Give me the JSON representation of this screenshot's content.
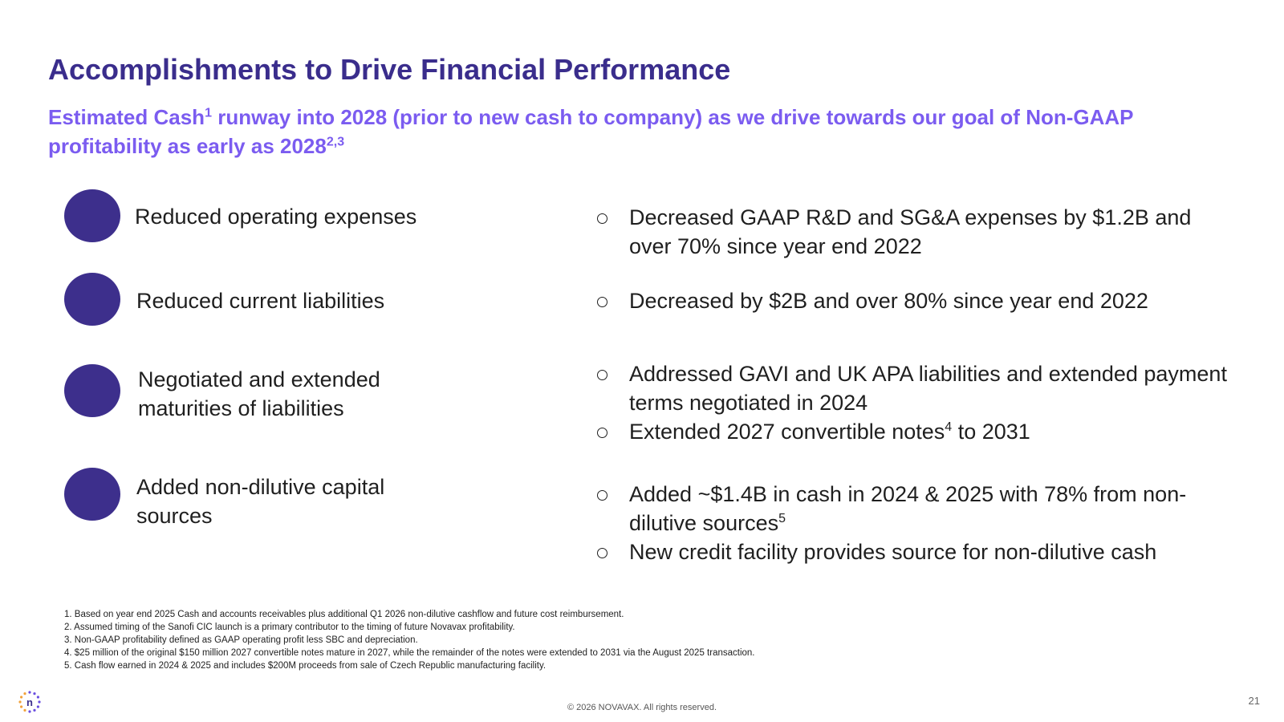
{
  "slide": {
    "title": "Accomplishments to Drive Financial Performance",
    "subtitle": {
      "part1": "Estimated Cash",
      "sup1": "1",
      "part2": " runway into 2028 (prior to new cash to company) as we drive towards our goal of Non-GAAP profitability as early as 2028",
      "sup2": "2,3"
    },
    "rows": [
      {
        "label": "Reduced operating expenses",
        "bullets": [
          {
            "text": "Decreased GAAP R&D and SG&A expenses by $1.2B and over 70% since year end 2022"
          }
        ]
      },
      {
        "label": "Reduced current liabilities",
        "bullets": [
          {
            "text": "Decreased by $2B and over 80% since year end 2022"
          }
        ]
      },
      {
        "label": "Negotiated and extended maturities of liabilities",
        "bullets": [
          {
            "text": "Addressed GAVI and UK APA liabilities and extended payment terms negotiated in 2024"
          },
          {
            "text": "Extended 2027 convertible notes",
            "sup": "4",
            "after": " to 2031"
          }
        ]
      },
      {
        "label": "Added non-dilutive capital sources",
        "bullets": [
          {
            "text": "Added ~$1.4B in cash in 2024 & 2025 with 78% from non-dilutive sources",
            "sup": "5"
          },
          {
            "text": "New credit facility provides source for non-dilutive cash"
          }
        ]
      }
    ],
    "footnotes": [
      "1. Based on year end 2025 Cash and accounts receivables plus additional Q1 2026 non-dilutive cashflow and future cost reimbursement.",
      "2.  Assumed timing of the Sanofi CIC launch is a primary contributor to the timing of future Novavax profitability.",
      "3. Non-GAAP profitability defined as GAAP operating profit less SBC and depreciation.",
      "4. $25 million of the original $150 million 2027 convertible notes mature in 2027, while the remainder of the notes were extended to 2031 via the August 2025  transaction.",
      "5. Cash flow earned in 2024 & 2025 and includes $200M proceeds from sale of Czech Republic manufacturing facility."
    ],
    "copyright": "© 2026 NOVAVAX. All rights reserved.",
    "page_number": "21",
    "logo_letter": "n",
    "colors": {
      "title": "#3a2d8c",
      "subtitle": "#7b5cf0",
      "circle": "#3d2f8c"
    }
  }
}
